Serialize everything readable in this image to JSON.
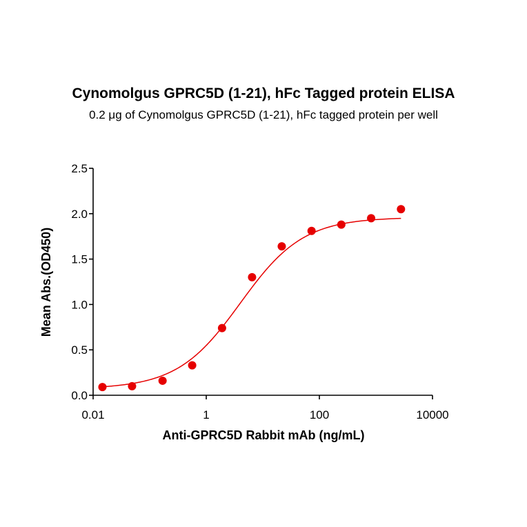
{
  "chart_data": {
    "type": "scatter",
    "title": "Cynomolgus GPRC5D (1-21), hFc Tagged protein ELISA",
    "subtitle": "0.2 μg of Cynomolgus GPRC5D (1-21), hFc tagged protein per well",
    "xlabel": "Anti-GPRC5D Rabbit mAb (ng/mL)",
    "ylabel": "Mean Abs.(OD450)",
    "x_scale": "log",
    "xlim": [
      0.01,
      10000
    ],
    "ylim": [
      0.0,
      2.5
    ],
    "x_ticks": [
      0.01,
      1,
      100,
      10000
    ],
    "x_tick_labels": [
      "0.01",
      "1",
      "100",
      "10000"
    ],
    "y_ticks": [
      0.0,
      0.5,
      1.0,
      1.5,
      2.0,
      2.5
    ],
    "y_tick_labels": [
      "0.0",
      "0.5",
      "1.0",
      "1.5",
      "2.0",
      "2.5"
    ],
    "grid": false,
    "colors": {
      "points": "#e60000",
      "curve": "#e60000"
    },
    "series": [
      {
        "x": [
          0.0146,
          0.0488,
          0.1689,
          0.5639,
          1.9023,
          6.4565,
          21.628,
          72.775,
          244.34,
          822.24,
          2771.8
        ],
        "y": [
          0.09,
          0.1,
          0.16,
          0.33,
          0.74,
          1.3,
          1.64,
          1.81,
          1.88,
          1.95,
          2.05
        ]
      }
    ],
    "fit": {
      "model": "4PL",
      "bottom": 0.07,
      "top": 1.96,
      "ec50": 4.0,
      "hill": 0.78,
      "x_range": [
        0.0146,
        2771.8
      ]
    }
  }
}
